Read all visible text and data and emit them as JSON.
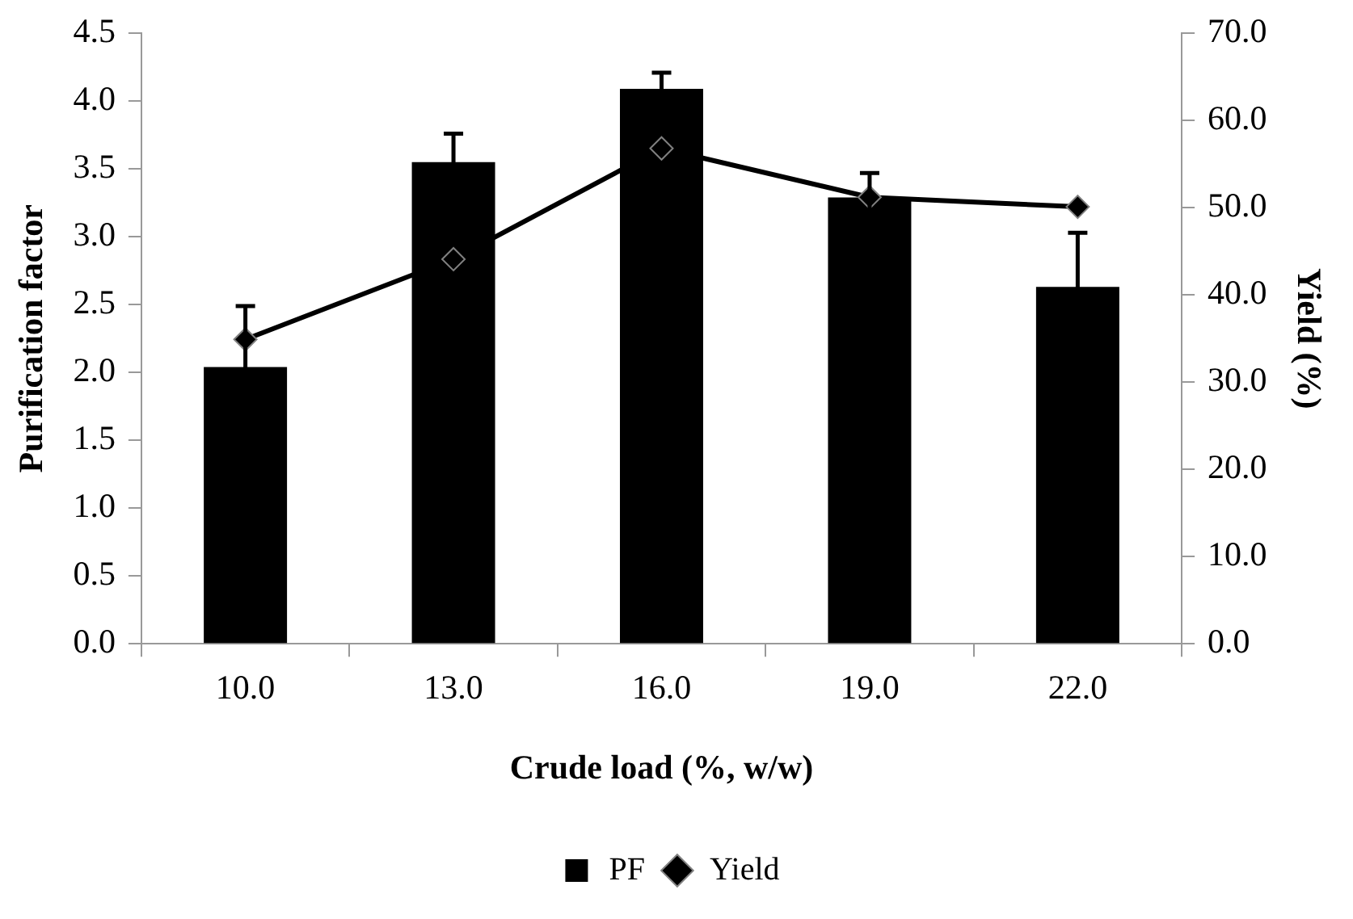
{
  "chart_data": {
    "type": "bar",
    "xlabel": "Crude load (%, w/w)",
    "ylabel": "Purification factor",
    "y2label": "Yield (%)",
    "categories": [
      "10.0",
      "13.0",
      "16.0",
      "19.0",
      "22.0"
    ],
    "series": [
      {
        "name": "PF",
        "color": "#000000",
        "values": [
          2.04,
          3.55,
          4.09,
          3.29,
          2.63
        ],
        "errors": [
          0.45,
          0.21,
          0.12,
          0.18,
          0.4
        ]
      },
      {
        "name": "Yield",
        "type": "line",
        "axis": "y2",
        "color": "#000000",
        "values": [
          34.9,
          44.1,
          56.8,
          51.2,
          50.1
        ]
      }
    ],
    "ylim": [
      0,
      4.5
    ],
    "yticks": [
      {
        "value": 0,
        "label": "0.0"
      },
      {
        "value": 0.5,
        "label": "0.5"
      },
      {
        "value": 1,
        "label": "1.0"
      },
      {
        "value": 1.5,
        "label": "1.5"
      },
      {
        "value": 2,
        "label": "2.0"
      },
      {
        "value": 2.5,
        "label": "2.5"
      },
      {
        "value": 3,
        "label": "3.0"
      },
      {
        "value": 3.5,
        "label": "3.5"
      },
      {
        "value": 4,
        "label": "4.0"
      },
      {
        "value": 4.5,
        "label": "4.5"
      }
    ],
    "y2lim": [
      0,
      70
    ],
    "y2ticks": [
      {
        "value": 0,
        "label": "0.0"
      },
      {
        "value": 10,
        "label": "10.0"
      },
      {
        "value": 20,
        "label": "20.0"
      },
      {
        "value": 30,
        "label": "30.0"
      },
      {
        "value": 40,
        "label": "40.0"
      },
      {
        "value": 50,
        "label": "50.0"
      },
      {
        "value": 60,
        "label": "60.0"
      },
      {
        "value": 70,
        "label": "70.0"
      }
    ],
    "grid": false,
    "legend": "bottom",
    "marker": "diamond",
    "line_style": "solid"
  }
}
